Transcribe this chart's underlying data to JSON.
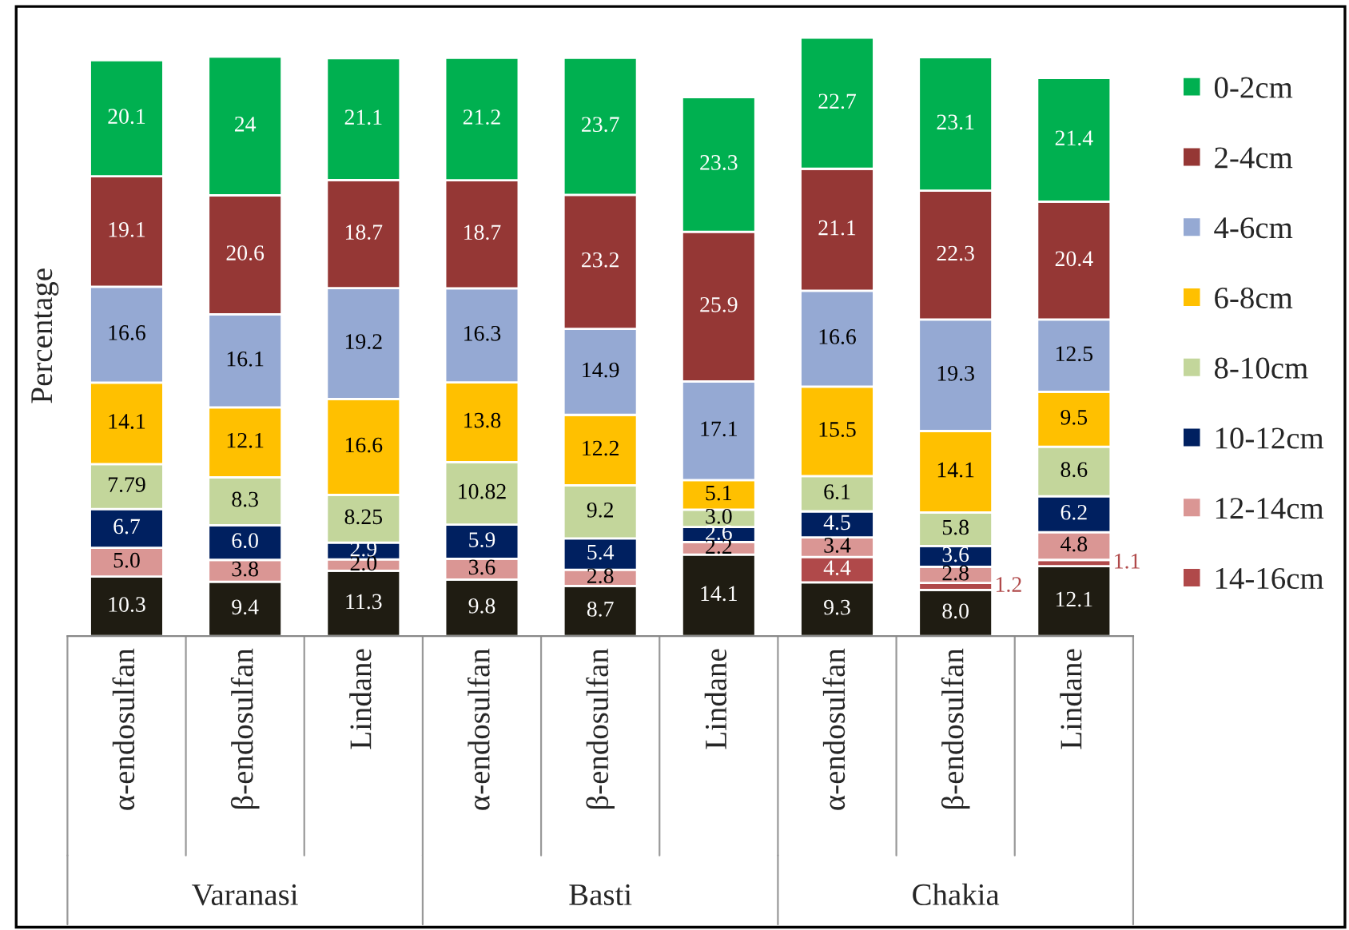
{
  "chart_data": {
    "type": "bar",
    "stacked": true,
    "ylabel": "Percentage",
    "categories": [
      "α-endosulfan",
      "β-endosulfan",
      "Lindane",
      "α-endosulfan",
      "β-endosulfan",
      "Lindane",
      "α-endosulfan",
      "β-endosulfan",
      "Lindane"
    ],
    "annotations": [
      "Varanasi",
      "Basti",
      "Chakia"
    ],
    "ylim": [
      0,
      104
    ],
    "tick_labels": "x",
    "legend": "right",
    "grid": false,
    "series": [
      {
        "color": "#1f1c12",
        "values": [
          10.3,
          9.4,
          11.3,
          9.8,
          8.7,
          14.1,
          9.3,
          8.0,
          12.1
        ],
        "value_labels": [
          "10.3",
          "9.4",
          "11.3",
          "9.8",
          "8.7",
          "14.1",
          "9.3",
          "8.0",
          "12.1"
        ]
      },
      {
        "name": "14-16cm",
        "color": "#b0494a",
        "values": [
          null,
          null,
          null,
          null,
          null,
          null,
          4.4,
          1.2,
          1.1
        ],
        "value_labels": [
          null,
          null,
          null,
          null,
          null,
          null,
          "4.4",
          "1.2",
          "1.1"
        ]
      },
      {
        "name": "12-14cm",
        "color": "#da9694",
        "values": [
          5.0,
          3.8,
          2.0,
          3.6,
          2.8,
          2.2,
          3.4,
          2.8,
          4.8
        ],
        "value_labels": [
          "5.0",
          "3.8",
          "2.0",
          "3.6",
          "2.8",
          "2.2",
          "3.4",
          "2.8",
          "4.8"
        ]
      },
      {
        "name": "10-12cm",
        "color": "#002060",
        "values": [
          6.7,
          6.0,
          2.9,
          5.9,
          5.4,
          2.6,
          4.5,
          3.6,
          6.2
        ],
        "value_labels": [
          "6.7",
          "6.0",
          "2.9",
          "5.9",
          "5.4",
          "2.6",
          "4.5",
          "3.6",
          "6.2"
        ]
      },
      {
        "name": "8-10cm",
        "color": "#c3d69b",
        "values": [
          7.79,
          8.3,
          8.25,
          10.82,
          9.2,
          3.0,
          6.1,
          5.8,
          8.6
        ],
        "value_labels": [
          "7.79",
          "8.3",
          "8.25",
          "10.82",
          "9.2",
          "3.0",
          "6.1",
          "5.8",
          "8.6"
        ]
      },
      {
        "name": "6-8cm",
        "color": "#ffc000",
        "values": [
          14.1,
          12.1,
          16.6,
          13.8,
          12.2,
          5.1,
          15.5,
          14.1,
          9.5
        ],
        "value_labels": [
          "14.1",
          "12.1",
          "16.6",
          "13.8",
          "12.2",
          "5.1",
          "15.5",
          "14.1",
          "9.5"
        ]
      },
      {
        "name": "4-6cm",
        "color": "#95a9d3",
        "values": [
          16.6,
          16.1,
          19.2,
          16.3,
          14.9,
          17.1,
          16.6,
          19.3,
          12.5
        ],
        "value_labels": [
          "16.6",
          "16.1",
          "19.2",
          "16.3",
          "14.9",
          "17.1",
          "16.6",
          "19.3",
          "12.5"
        ]
      },
      {
        "name": "2-4cm",
        "color": "#953735",
        "values": [
          19.1,
          20.6,
          18.7,
          18.7,
          23.2,
          25.9,
          21.1,
          22.3,
          20.4
        ],
        "value_labels": [
          "19.1",
          "20.6",
          "18.7",
          "18.7",
          "23.2",
          "25.9",
          "21.1",
          "22.3",
          "20.4"
        ]
      },
      {
        "name": "0-2cm",
        "color": "#00b050",
        "values": [
          20.1,
          24,
          21.1,
          21.2,
          23.7,
          23.3,
          22.7,
          23.1,
          21.4
        ],
        "value_labels": [
          "20.1",
          "24",
          "21.1",
          "21.2",
          "23.7",
          "23.3",
          "22.7",
          "23.1",
          "21.4"
        ]
      }
    ]
  }
}
